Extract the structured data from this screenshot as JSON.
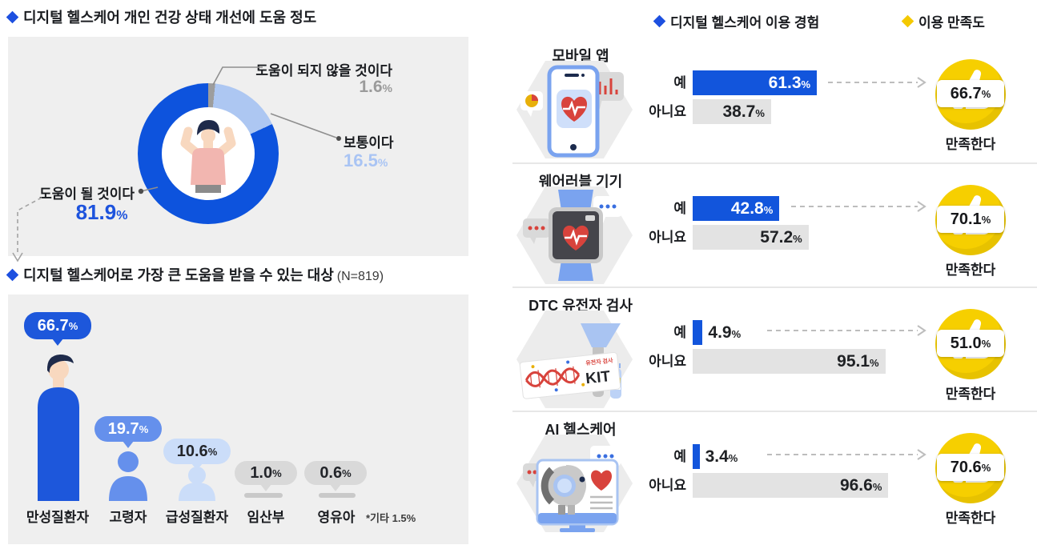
{
  "symbols": {
    "percent": "%"
  },
  "left": {
    "help_section": {
      "title": "디지털 헬스케어 개인 건강 상태 개선에 도움 정도",
      "slices": [
        {
          "label": "도움이 될 것이다",
          "value": 81.9,
          "display": "81.9",
          "color": "#0d53dd"
        },
        {
          "label": "보통이다",
          "value": 16.5,
          "display": "16.5",
          "color": "#adc7f2"
        },
        {
          "label": "도움이 되지 않을 것이다",
          "value": 1.6,
          "display": "1.6",
          "color": "#9d9d9d"
        }
      ]
    },
    "target_section": {
      "title": "디지털 헬스케어로 가장 큰 도움을 받을 수 있는 대상",
      "sample": "(N=819)",
      "items": [
        {
          "label": "만성질환자",
          "value": "66.7"
        },
        {
          "label": "고령자",
          "value": "19.7"
        },
        {
          "label": "급성질환자",
          "value": "10.6"
        },
        {
          "label": "임산부",
          "value": "1.0"
        },
        {
          "label": "영유아",
          "value": "0.6"
        }
      ],
      "footnote": "*기타 1.5%"
    }
  },
  "right": {
    "legend_experience": "디지털 헬스케어 이용 경험",
    "legend_satisfaction": "이용 만족도",
    "yes_label": "예",
    "no_label": "아니요",
    "satisfied_label": "만족한다",
    "kit_label": "KIT",
    "kit_small": "유전자 검사",
    "rows": [
      {
        "label": "모바일 앱",
        "yes": "61.3",
        "no": "38.7",
        "sat": "66.7"
      },
      {
        "label": "웨어러블 기기",
        "yes": "42.8",
        "no": "57.2",
        "sat": "70.1"
      },
      {
        "label": "DTC 유전자 검사",
        "yes": "4.9",
        "no": "95.1",
        "sat": "51.0"
      },
      {
        "label": "AI 헬스케어",
        "yes": "3.4",
        "no": "96.6",
        "sat": "70.6"
      }
    ]
  },
  "chart_data": [
    {
      "type": "pie",
      "title": "디지털 헬스케어 개인 건강 상태 개선에 도움 정도",
      "labels": [
        "도움이 될 것이다",
        "보통이다",
        "도움이 되지 않을 것이다"
      ],
      "values": [
        81.9,
        16.5,
        1.6
      ],
      "colors": [
        "#0d53dd",
        "#adc7f2",
        "#9d9d9d"
      ],
      "unit": "%",
      "style": "donut"
    },
    {
      "type": "bar",
      "title": "디지털 헬스케어로 가장 큰 도움을 받을 수 있는 대상",
      "n": 819,
      "categories": [
        "만성질환자",
        "고령자",
        "급성질환자",
        "임산부",
        "영유아"
      ],
      "values": [
        66.7,
        19.7,
        10.6,
        1.0,
        0.6
      ],
      "other": 1.5,
      "unit": "%",
      "style": "pictogram"
    },
    {
      "type": "bar",
      "title": "디지털 헬스케어 이용 경험 / 이용 만족도",
      "categories": [
        "모바일 앱",
        "웨어러블 기기",
        "DTC 유전자 검사",
        "AI 헬스케어"
      ],
      "series": [
        {
          "name": "예",
          "values": [
            61.3,
            42.8,
            4.9,
            3.4
          ]
        },
        {
          "name": "아니요",
          "values": [
            38.7,
            57.2,
            95.1,
            96.6
          ]
        },
        {
          "name": "이용 만족도(만족한다)",
          "values": [
            66.7,
            70.1,
            51.0,
            70.6
          ]
        }
      ],
      "unit": "%",
      "orientation": "horizontal"
    }
  ]
}
